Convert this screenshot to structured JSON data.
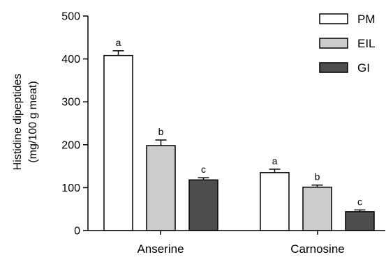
{
  "chart_data": {
    "type": "bar",
    "categories": [
      "Anserine",
      "Carnosine"
    ],
    "ylabel_lines": [
      "Histidine dipeptides",
      "(mg/100 g meat)"
    ],
    "ylim": [
      0,
      500
    ],
    "yticks": [
      0,
      100,
      200,
      300,
      400,
      500
    ],
    "ytick_labels": [
      "0",
      "100",
      "200",
      "300",
      "400",
      "500"
    ],
    "legend_position": "top-right",
    "series": [
      {
        "name": "PM",
        "color": "#ffffff",
        "values": [
          408,
          135
        ],
        "errors": [
          11,
          8
        ],
        "letters": [
          "a",
          "a"
        ]
      },
      {
        "name": "EIL",
        "color": "#cccccc",
        "values": [
          198,
          101
        ],
        "errors": [
          13,
          5
        ],
        "letters": [
          "b",
          "b"
        ]
      },
      {
        "name": "GI",
        "color": "#4d4d4d",
        "values": [
          118,
          44
        ],
        "errors": [
          5,
          4
        ],
        "letters": [
          "c",
          "c"
        ]
      }
    ]
  }
}
